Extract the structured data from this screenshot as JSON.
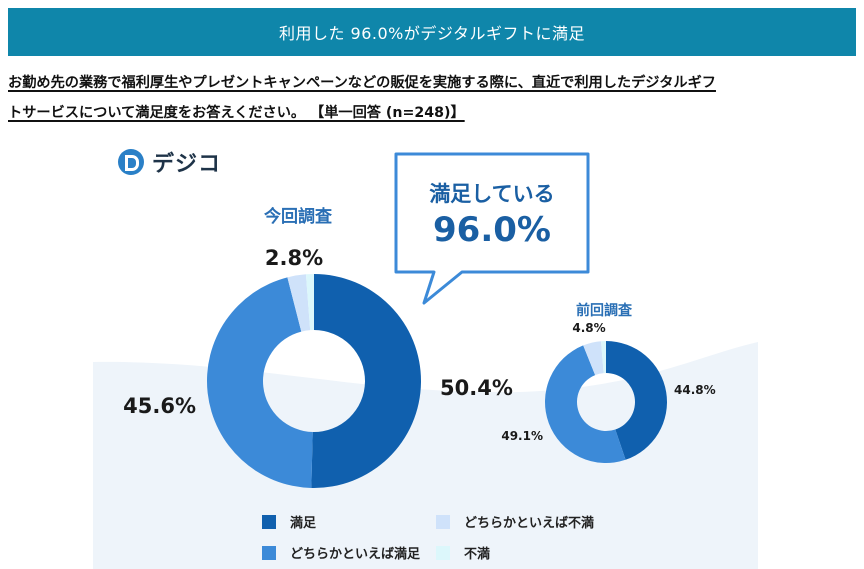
{
  "banner": {
    "title": "利用した 96.0%がデジタルギフトに満足"
  },
  "question": {
    "line1": "お勤め先の業務で福利厚生やプレゼントキャンペーンなどの販促を実施する際に、直近で利用したデジタルギフ",
    "line2": "トサービスについて満足度をお答えください。 【単一回答 (n=248)】"
  },
  "brand": {
    "name": "デジコ",
    "icon": "dejico-logo-icon"
  },
  "callout": {
    "label": "満足している",
    "value": "96.0%"
  },
  "colors": {
    "satisfied": "#1060ae",
    "somewhat_satisfied": "#3c8ad8",
    "somewhat_dissatisfied": "#cfe2fa",
    "dissatisfied": "#dcf7fb",
    "banner": "#0f86aa",
    "callout_border": "#3c8ad8",
    "callout_text": "#1a5fa3"
  },
  "chart_data": [
    {
      "type": "pie",
      "variant": "donut",
      "title": "今回調査",
      "categories": [
        "満足",
        "どちらかといえば満足",
        "どちらかといえば不満",
        "不満"
      ],
      "values": [
        50.4,
        45.6,
        2.8,
        1.2
      ],
      "labels": [
        "50.4%",
        "45.6%",
        "2.8%",
        ""
      ],
      "unit": "%"
    },
    {
      "type": "pie",
      "variant": "donut",
      "title": "前回調査",
      "categories": [
        "満足",
        "どちらかといえば満足",
        "どちらかといえば不満",
        "不満"
      ],
      "values": [
        44.8,
        49.1,
        4.8,
        1.3
      ],
      "labels": [
        "44.8%",
        "49.1%",
        "4.8%",
        ""
      ],
      "unit": "%"
    }
  ],
  "legend": [
    {
      "key": "satisfied",
      "label": "満足"
    },
    {
      "key": "somewhat_dissatisfied",
      "label": "どちらかといえば不満"
    },
    {
      "key": "somewhat_satisfied",
      "label": "どちらかといえば満足"
    },
    {
      "key": "dissatisfied",
      "label": "不満"
    }
  ]
}
